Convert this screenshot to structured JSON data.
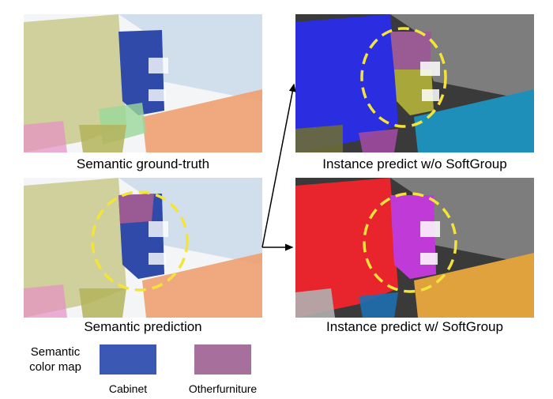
{
  "panels": {
    "semantic_gt": {
      "caption": "Semantic ground-truth"
    },
    "semantic_pred": {
      "caption": "Semantic prediction"
    },
    "instance_wo": {
      "caption": "Instance predict w/o SoftGroup"
    },
    "instance_w": {
      "caption": "Instance predict w/ SoftGroup"
    }
  },
  "legend": {
    "title_line1": "Semantic",
    "title_line2": "color map",
    "items": [
      {
        "label": "Cabinet",
        "color": "#3a58b4"
      },
      {
        "label": "Otherfurniture",
        "color": "#a66f9c"
      }
    ]
  },
  "colors": {
    "wall": "#c9c98c",
    "wall_light": "#c8d8e8",
    "cabinet": "#2f4aa8",
    "otherfurniture": "#9a5a93",
    "floor": "#f0a070",
    "highlight": "#f4e43a",
    "inst_blue": "#2b2ee0",
    "inst_olive": "#a8a83a",
    "inst_cyan": "#1e8fb8",
    "inst_red": "#e8242c",
    "inst_magenta": "#c03ad8",
    "inst_gold": "#e0a23c"
  }
}
